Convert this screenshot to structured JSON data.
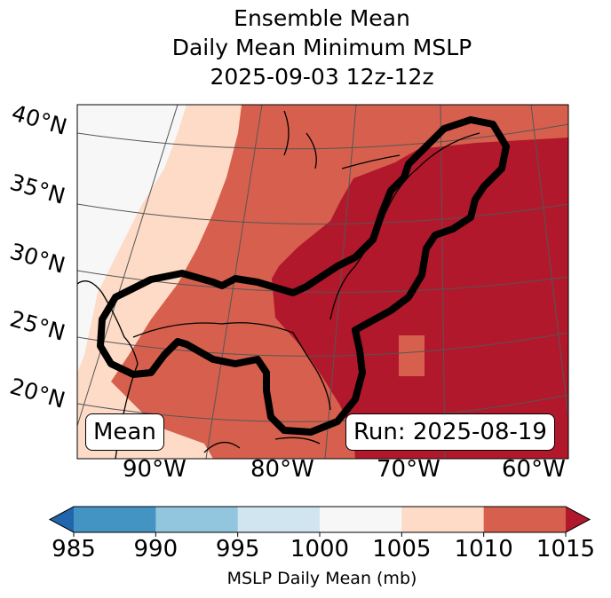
{
  "title": [
    "Ensemble Mean",
    "Daily Mean Minimum MSLP",
    "2025-09-03 12z-12z"
  ],
  "lat_labels": [
    "40°N",
    "35°N",
    "30°N",
    "25°N",
    "20°N"
  ],
  "lon_labels": [
    "90°W",
    "80°W",
    "70°W",
    "60°W"
  ],
  "mean_label": "Mean",
  "run_label": "Run: 2025-08-19",
  "colorbar": {
    "ticks": [
      "985",
      "990",
      "995",
      "1000",
      "1005",
      "1010",
      "1015"
    ],
    "label": "MSLP Daily Mean (mb)",
    "under_color": "#2166ac",
    "colors": [
      "#4393c3",
      "#92c5de",
      "#d1e5f0",
      "#f7f7f7",
      "#fddbc7",
      "#d6604d"
    ],
    "over_color": "#b2182b"
  }
}
